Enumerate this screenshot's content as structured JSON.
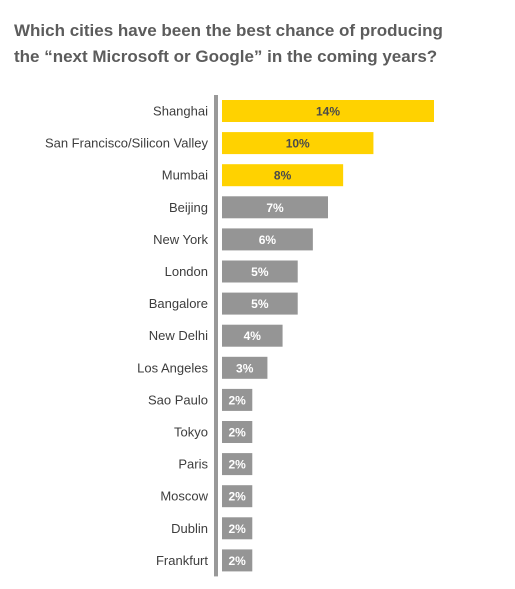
{
  "title_lines": [
    "Which cities have been the best chance of producing",
    "the “next Microsoft or Google” in the coming years?"
  ],
  "colors": {
    "highlight": "#FFD200",
    "bar": "#959595",
    "axis": "#999999",
    "label": "#3d3d3d",
    "title": "#5c5c5c"
  },
  "chart_data": {
    "type": "bar",
    "orientation": "horizontal",
    "title": "Which cities have been the best chance of producing the “next Microsoft or Google” in the coming years?",
    "unit": "%",
    "categories": [
      "Shanghai",
      "San Francisco/Silicon Valley",
      "Mumbai",
      "Beijing",
      "New York",
      "London",
      "Bangalore",
      "New Delhi",
      "Los Angeles",
      "Sao Paulo",
      "Tokyo",
      "Paris",
      "Moscow",
      "Dublin",
      "Frankfurt"
    ],
    "values": [
      14,
      10,
      8,
      7,
      6,
      5,
      5,
      4,
      3,
      2,
      2,
      2,
      2,
      2,
      2
    ],
    "data_labels": [
      "14%",
      "10%",
      "8%",
      "7%",
      "6%",
      "5%",
      "5%",
      "4%",
      "3%",
      "2%",
      "2%",
      "2%",
      "2%",
      "2%",
      "2%"
    ],
    "highlighted_count": 3,
    "xlim": [
      0,
      14
    ],
    "grid": false,
    "legend": "none"
  }
}
